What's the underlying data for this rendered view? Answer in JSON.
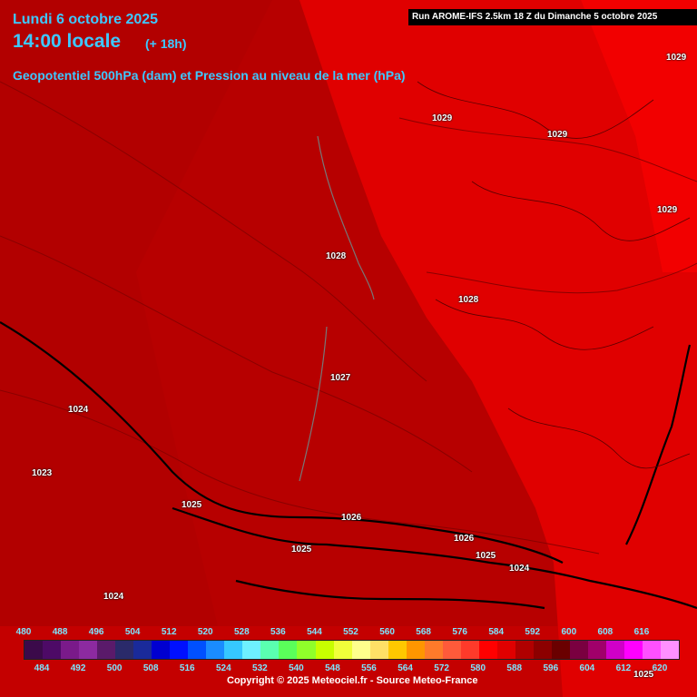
{
  "header": {
    "date": "Lundi 6 octobre 2025",
    "time": "14:00 locale",
    "lead": "(+ 18h)",
    "description": "Geopotentiel 500hPa (dam) et Pression au niveau de la mer (hPa)"
  },
  "run_info": "Run AROME-IFS 2.5km 18 Z du Dimanche 5 octobre 2025",
  "pressure_labels": [
    {
      "text": "1029"
    },
    {
      "text": "1029"
    },
    {
      "text": "1029"
    },
    {
      "text": "1029"
    },
    {
      "text": "1028"
    },
    {
      "text": "1028"
    },
    {
      "text": "1027"
    },
    {
      "text": "1024"
    },
    {
      "text": "1023"
    },
    {
      "text": "1025"
    },
    {
      "text": "1026"
    },
    {
      "text": "1025"
    },
    {
      "text": "1026"
    },
    {
      "text": "1025"
    },
    {
      "text": "1024"
    },
    {
      "text": "1024"
    },
    {
      "text": "1025"
    }
  ],
  "legend": {
    "top_ticks": [
      "480",
      "488",
      "496",
      "504",
      "512",
      "520",
      "528",
      "536",
      "544",
      "552",
      "560",
      "568",
      "576",
      "584",
      "592",
      "600",
      "608",
      "616"
    ],
    "bottom_ticks": [
      "484",
      "492",
      "500",
      "508",
      "516",
      "524",
      "532",
      "540",
      "548",
      "556",
      "564",
      "572",
      "580",
      "588",
      "596",
      "604",
      "612",
      "620"
    ],
    "colors": [
      "#3b0a4a",
      "#4d0a66",
      "#7a1a8a",
      "#8c2aa0",
      "#5a1a6a",
      "#2a2a6a",
      "#1a2a9a",
      "#0000d0",
      "#0010ff",
      "#0050ff",
      "#1a8cff",
      "#36c8ff",
      "#6ef0ff",
      "#5affb0",
      "#5aff5a",
      "#90ff2a",
      "#c8ff00",
      "#f0ff3a",
      "#ffff8c",
      "#ffe066",
      "#ffc800",
      "#ff9600",
      "#ff7a2a",
      "#ff5a3a",
      "#ff3a2a",
      "#ff0000",
      "#e00000",
      "#b00000",
      "#8c0000",
      "#6a0000",
      "#7a0040",
      "#a0006a",
      "#d000c8",
      "#ff00ff",
      "#ff50ff",
      "#ff90ff"
    ]
  },
  "copyright": "Copyright © 2025 Meteociel.fr - Source Meteo-France"
}
